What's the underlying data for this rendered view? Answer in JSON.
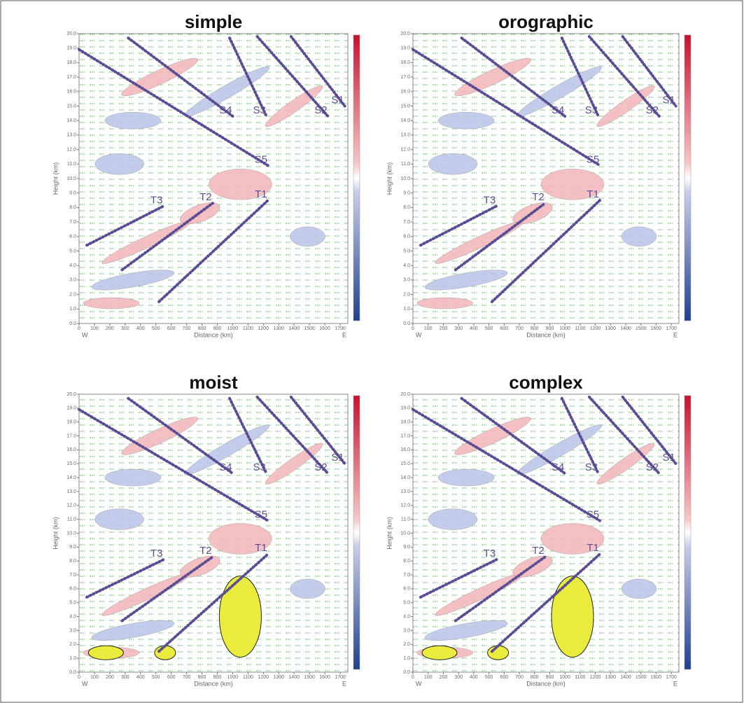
{
  "chart_data": [
    {
      "type": "line",
      "title": "simple",
      "x_label": "Distance (km)",
      "y_label": "Height (km)",
      "x_left_label": "W",
      "x_right_label": "E",
      "xlim": [
        0,
        1750
      ],
      "ylim": [
        0,
        20
      ],
      "xticks": [
        0,
        100,
        200,
        300,
        400,
        500,
        600,
        700,
        800,
        900,
        1000,
        1100,
        1200,
        1300,
        1400,
        1500,
        1600,
        1700
      ],
      "yticks": [
        {
          "value": 0,
          "label": "0.0"
        },
        {
          "value": 1,
          "label": "1.0"
        },
        {
          "value": 2,
          "label": "2.0"
        },
        {
          "value": 3,
          "label": "3.0"
        },
        {
          "value": 4,
          "label": "4.0"
        },
        {
          "value": 5,
          "label": "5.0"
        },
        {
          "value": 6,
          "label": "6.0"
        },
        {
          "value": 7,
          "label": "7.0"
        },
        {
          "value": 8,
          "label": "8.0"
        },
        {
          "value": 9,
          "label": "9.0"
        },
        {
          "value": 10,
          "label": "10.0"
        },
        {
          "value": 11,
          "label": "11.0"
        },
        {
          "value": 12,
          "label": "12.0"
        },
        {
          "value": 13,
          "label": "13.0"
        },
        {
          "value": 14,
          "label": "14.0"
        },
        {
          "value": 15,
          "label": "15.0"
        },
        {
          "value": 16,
          "label": "16.0"
        },
        {
          "value": 17,
          "label": "17.0"
        },
        {
          "value": 18,
          "label": "18.0"
        },
        {
          "value": 19,
          "label": "19.0"
        },
        {
          "value": 20,
          "label": "20.0"
        }
      ],
      "series": [
        {
          "name": "S1",
          "color": "#5a4d94",
          "x": [
            1380,
            1730
          ],
          "values": [
            19.8,
            15.0
          ]
        },
        {
          "name": "S2",
          "color": "#5a4d94",
          "x": [
            1160,
            1620
          ],
          "values": [
            19.8,
            14.3
          ]
        },
        {
          "name": "S3",
          "color": "#5a4d94",
          "x": [
            980,
            1220
          ],
          "values": [
            19.7,
            14.3
          ]
        },
        {
          "name": "S4",
          "color": "#5a4d94",
          "x": [
            320,
            1000
          ],
          "values": [
            19.7,
            14.3
          ]
        },
        {
          "name": "S5",
          "color": "#5a4d94",
          "x": [
            0,
            1230
          ],
          "values": [
            18.9,
            10.9
          ]
        },
        {
          "name": "T1",
          "color": "#5a4d94",
          "x": [
            520,
            1230
          ],
          "values": [
            1.5,
            8.5
          ]
        },
        {
          "name": "T2",
          "color": "#5a4d94",
          "x": [
            280,
            870
          ],
          "values": [
            3.7,
            8.3
          ]
        },
        {
          "name": "T3",
          "color": "#5a4d94",
          "x": [
            50,
            550
          ],
          "values": [
            5.4,
            8.1
          ]
        }
      ]
    },
    {
      "type": "line",
      "title": "orographic",
      "x_label": "Distance (km)",
      "y_label": "Height (km)",
      "x_left_label": "W",
      "x_right_label": "E",
      "xlim": [
        0,
        1750
      ],
      "ylim": [
        0,
        20
      ],
      "xticks": [
        0,
        100,
        200,
        300,
        400,
        500,
        600,
        700,
        800,
        900,
        1000,
        1100,
        1200,
        1300,
        1400,
        1500,
        1600,
        1700
      ],
      "yticks": [
        {
          "value": 0,
          "label": "0.0"
        },
        {
          "value": 1,
          "label": "1.0"
        },
        {
          "value": 2,
          "label": "2.0"
        },
        {
          "value": 3,
          "label": "3.0"
        },
        {
          "value": 4,
          "label": "4.0"
        },
        {
          "value": 5,
          "label": "5.0"
        },
        {
          "value": 6,
          "label": "6.0"
        },
        {
          "value": 7,
          "label": "7.0"
        },
        {
          "value": 8,
          "label": "8.0"
        },
        {
          "value": 9,
          "label": "9.0"
        },
        {
          "value": 10,
          "label": "10.0"
        },
        {
          "value": 11,
          "label": "11.0"
        },
        {
          "value": 12,
          "label": "12.0"
        },
        {
          "value": 13,
          "label": "13.0"
        },
        {
          "value": 14,
          "label": "14.0"
        },
        {
          "value": 15,
          "label": "15.0"
        },
        {
          "value": 16,
          "label": "16.0"
        },
        {
          "value": 17,
          "label": "17.0"
        },
        {
          "value": 18,
          "label": "18.0"
        },
        {
          "value": 19,
          "label": "19.0"
        },
        {
          "value": 20,
          "label": "20.0"
        }
      ],
      "series": [
        {
          "name": "S1",
          "color": "#5a4d94",
          "x": [
            1380,
            1730
          ],
          "values": [
            19.8,
            15.0
          ]
        },
        {
          "name": "S2",
          "color": "#5a4d94",
          "x": [
            1160,
            1620
          ],
          "values": [
            19.8,
            14.3
          ]
        },
        {
          "name": "S3",
          "color": "#5a4d94",
          "x": [
            980,
            1220
          ],
          "values": [
            19.7,
            14.3
          ]
        },
        {
          "name": "S4",
          "color": "#5a4d94",
          "x": [
            320,
            1000
          ],
          "values": [
            19.7,
            14.3
          ]
        },
        {
          "name": "S5",
          "color": "#5a4d94",
          "x": [
            0,
            1230
          ],
          "values": [
            18.9,
            10.9
          ]
        },
        {
          "name": "T1",
          "color": "#5a4d94",
          "x": [
            520,
            1230
          ],
          "values": [
            1.5,
            8.5
          ]
        },
        {
          "name": "T2",
          "color": "#5a4d94",
          "x": [
            280,
            870
          ],
          "values": [
            3.7,
            8.3
          ]
        },
        {
          "name": "T3",
          "color": "#5a4d94",
          "x": [
            50,
            550
          ],
          "values": [
            5.4,
            8.1
          ]
        }
      ]
    },
    {
      "type": "line",
      "title": "moist",
      "x_label": "Distance (km)",
      "y_label": "Height (km)",
      "x_left_label": "W",
      "x_right_label": "E",
      "xlim": [
        0,
        1750
      ],
      "ylim": [
        0,
        20
      ],
      "xticks": [
        0,
        100,
        200,
        300,
        400,
        500,
        600,
        700,
        800,
        900,
        1000,
        1100,
        1200,
        1300,
        1400,
        1500,
        1600,
        1700
      ],
      "yticks": [
        {
          "value": 0,
          "label": "0.0"
        },
        {
          "value": 1,
          "label": "1.0"
        },
        {
          "value": 2,
          "label": "2.0"
        },
        {
          "value": 3,
          "label": "3.0"
        },
        {
          "value": 4,
          "label": "4.0"
        },
        {
          "value": 5,
          "label": "5.0"
        },
        {
          "value": 6,
          "label": "6.0"
        },
        {
          "value": 7,
          "label": "7.0"
        },
        {
          "value": 8,
          "label": "8.0"
        },
        {
          "value": 9,
          "label": "9.0"
        },
        {
          "value": 10,
          "label": "10.0"
        },
        {
          "value": 11,
          "label": "11.0"
        },
        {
          "value": 12,
          "label": "12.0"
        },
        {
          "value": 13,
          "label": "13.0"
        },
        {
          "value": 14,
          "label": "14.0"
        },
        {
          "value": 15,
          "label": "15.0"
        },
        {
          "value": 16,
          "label": "16.0"
        },
        {
          "value": 17,
          "label": "17.0"
        },
        {
          "value": 18,
          "label": "18.0"
        },
        {
          "value": 19,
          "label": "19.0"
        },
        {
          "value": 20,
          "label": "20.0"
        }
      ],
      "series": [
        {
          "name": "S1",
          "color": "#5a4d94",
          "x": [
            1380,
            1730
          ],
          "values": [
            19.8,
            15.0
          ]
        },
        {
          "name": "S2",
          "color": "#5a4d94",
          "x": [
            1160,
            1620
          ],
          "values": [
            19.8,
            14.3
          ]
        },
        {
          "name": "S3",
          "color": "#5a4d94",
          "x": [
            980,
            1220
          ],
          "values": [
            19.7,
            14.3
          ]
        },
        {
          "name": "S4",
          "color": "#5a4d94",
          "x": [
            320,
            1000
          ],
          "values": [
            19.7,
            14.3
          ]
        },
        {
          "name": "S5",
          "color": "#5a4d94",
          "x": [
            0,
            1230
          ],
          "values": [
            18.9,
            10.9
          ]
        },
        {
          "name": "T1",
          "color": "#5a4d94",
          "x": [
            520,
            1230
          ],
          "values": [
            1.5,
            8.5
          ]
        },
        {
          "name": "T2",
          "color": "#5a4d94",
          "x": [
            280,
            870
          ],
          "values": [
            3.7,
            8.3
          ]
        },
        {
          "name": "T3",
          "color": "#5a4d94",
          "x": [
            50,
            550
          ],
          "values": [
            5.4,
            8.1
          ]
        }
      ]
    },
    {
      "type": "line",
      "title": "complex",
      "x_label": "Distance (km)",
      "y_label": "Height (km)",
      "x_left_label": "W",
      "x_right_label": "E",
      "xlim": [
        0,
        1750
      ],
      "ylim": [
        0,
        20
      ],
      "xticks": [
        0,
        100,
        200,
        300,
        400,
        500,
        600,
        700,
        800,
        900,
        1000,
        1100,
        1200,
        1300,
        1400,
        1500,
        1600,
        1700
      ],
      "yticks": [
        {
          "value": 0,
          "label": "0.0"
        },
        {
          "value": 1,
          "label": "1.0"
        },
        {
          "value": 2,
          "label": "2.0"
        },
        {
          "value": 3,
          "label": "3.0"
        },
        {
          "value": 4,
          "label": "4.0"
        },
        {
          "value": 5,
          "label": "5.0"
        },
        {
          "value": 6,
          "label": "6.0"
        },
        {
          "value": 7,
          "label": "7.0"
        },
        {
          "value": 8,
          "label": "8.0"
        },
        {
          "value": 9,
          "label": "9.0"
        },
        {
          "value": 10,
          "label": "10.0"
        },
        {
          "value": 11,
          "label": "11.0"
        },
        {
          "value": 12,
          "label": "12.0"
        },
        {
          "value": 13,
          "label": "13.0"
        },
        {
          "value": 14,
          "label": "14.0"
        },
        {
          "value": 15,
          "label": "15.0"
        },
        {
          "value": 16,
          "label": "16.0"
        },
        {
          "value": 17,
          "label": "17.0"
        },
        {
          "value": 18,
          "label": "18.0"
        },
        {
          "value": 19,
          "label": "19.0"
        },
        {
          "value": 20,
          "label": "20.0"
        }
      ],
      "series": [
        {
          "name": "S1",
          "color": "#5a4d94",
          "x": [
            1380,
            1730
          ],
          "values": [
            19.8,
            15.0
          ]
        },
        {
          "name": "S2",
          "color": "#5a4d94",
          "x": [
            1160,
            1620
          ],
          "values": [
            19.8,
            14.3
          ]
        },
        {
          "name": "S3",
          "color": "#5a4d94",
          "x": [
            980,
            1220
          ],
          "values": [
            19.7,
            14.3
          ]
        },
        {
          "name": "S4",
          "color": "#5a4d94",
          "x": [
            320,
            1000
          ],
          "values": [
            19.7,
            14.3
          ]
        },
        {
          "name": "S5",
          "color": "#5a4d94",
          "x": [
            0,
            1230
          ],
          "values": [
            18.9,
            10.9
          ]
        },
        {
          "name": "T1",
          "color": "#5a4d94",
          "x": [
            520,
            1230
          ],
          "values": [
            1.5,
            8.5
          ]
        },
        {
          "name": "T2",
          "color": "#5a4d94",
          "x": [
            280,
            870
          ],
          "values": [
            3.7,
            8.3
          ]
        },
        {
          "name": "T3",
          "color": "#5a4d94",
          "x": [
            50,
            550
          ],
          "values": [
            5.4,
            8.1
          ]
        }
      ]
    }
  ]
}
